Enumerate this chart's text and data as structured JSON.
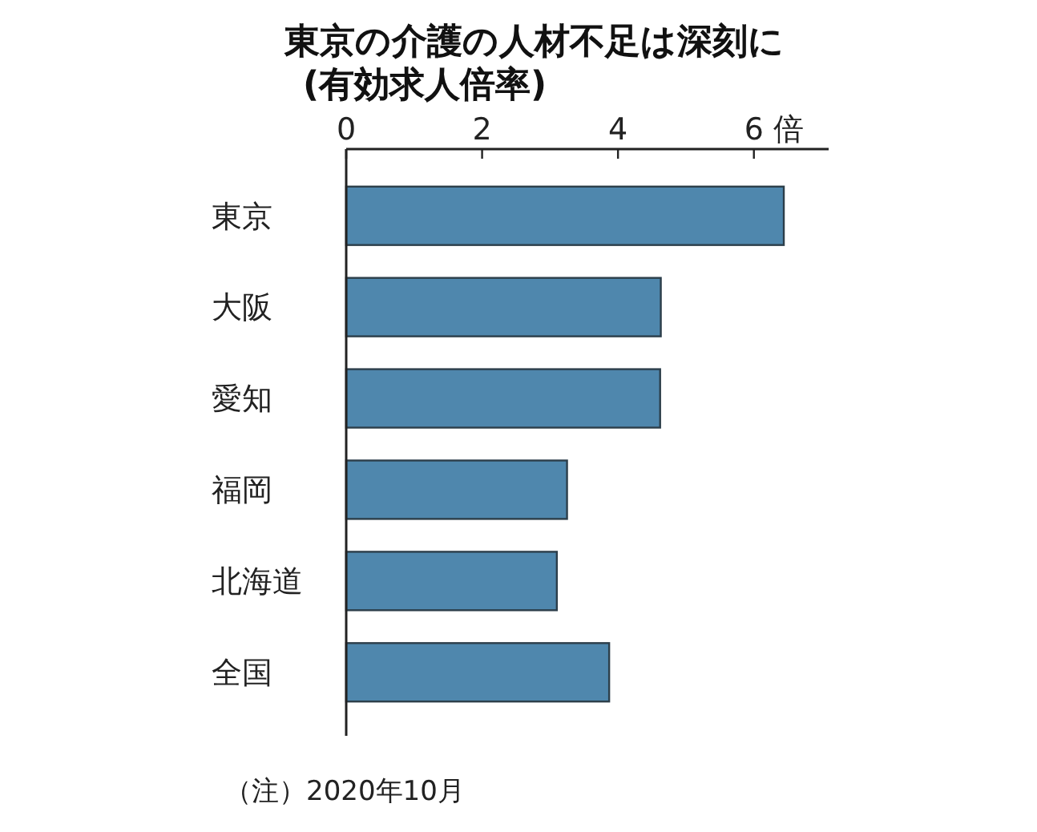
{
  "chart_data": {
    "type": "bar",
    "orientation": "horizontal",
    "title": "東京の介護の人材不足は深刻に",
    "subtitle": "(有効求人倍率)",
    "xlabel": "倍",
    "categories": [
      "東京",
      "大阪",
      "愛知",
      "福岡",
      "北海道",
      "全国"
    ],
    "values": [
      6.44,
      4.63,
      4.62,
      3.25,
      3.1,
      3.87
    ],
    "color": "#4f87ad",
    "xlim": [
      0,
      7.1
    ],
    "xticks": [
      0,
      2,
      4,
      6
    ],
    "grid": false,
    "annotations": [
      "（注）2020年10月"
    ]
  }
}
